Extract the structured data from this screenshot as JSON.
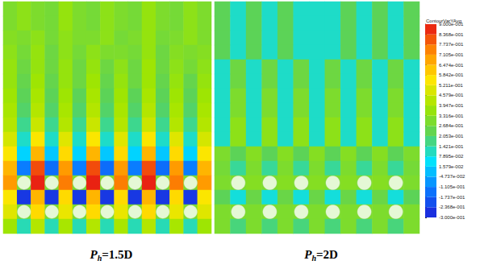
{
  "chart_data": {
    "type": "heatmap",
    "tick_labels": false,
    "colorbar": {
      "title": "ContourVarYAvg",
      "range": [
        -0.3,
        0.9
      ],
      "ticks": [
        {
          "value": 0.9,
          "label": "9.000e-001"
        },
        {
          "value": 0.8368,
          "label": "8.368e-001"
        },
        {
          "value": 0.7737,
          "label": "7.737e-001"
        },
        {
          "value": 0.7105,
          "label": "7.105e-001"
        },
        {
          "value": 0.6474,
          "label": "6.474e-001"
        },
        {
          "value": 0.5842,
          "label": "5.842e-001"
        },
        {
          "value": 0.5211,
          "label": "5.211e-001"
        },
        {
          "value": 0.4579,
          "label": "4.579e-001"
        },
        {
          "value": 0.3947,
          "label": "3.947e-001"
        },
        {
          "value": 0.3316,
          "label": "3.316e-001"
        },
        {
          "value": 0.2684,
          "label": "2.684e-001"
        },
        {
          "value": 0.2053,
          "label": "2.053e-001"
        },
        {
          "value": 0.1421,
          "label": "1.421e-001"
        },
        {
          "value": 0.07895,
          "label": "7.895e-002"
        },
        {
          "value": 0.01579,
          "label": "1.579e-002"
        },
        {
          "value": -0.04737,
          "label": "-4.737e-002"
        },
        {
          "value": -0.1105,
          "label": "-1.105e-001"
        },
        {
          "value": -0.1737,
          "label": "-1.737e-001"
        },
        {
          "value": -0.2368,
          "label": "-2.368e-001"
        },
        {
          "value": -0.3,
          "label": "-3.000e-001"
        }
      ]
    },
    "panels": [
      {
        "label": {
          "symbol": "P",
          "subscript": "h",
          "value": "=1.5D"
        },
        "tubes": [
          [
            1,
            12
          ],
          [
            3,
            12
          ],
          [
            5,
            12
          ],
          [
            7,
            12
          ],
          [
            9,
            12
          ],
          [
            11,
            12
          ],
          [
            13,
            12
          ],
          [
            1,
            14
          ],
          [
            3,
            14
          ],
          [
            5,
            14
          ],
          [
            7,
            14
          ],
          [
            9,
            14
          ],
          [
            11,
            14
          ],
          [
            13,
            14
          ]
        ],
        "cells": [
          [
            0.3,
            0.34,
            0.3,
            0.28,
            0.36,
            0.3,
            0.28,
            0.34,
            0.3,
            0.28,
            0.36,
            0.3,
            0.28,
            0.34,
            0.3
          ],
          [
            0.3,
            0.34,
            0.3,
            0.28,
            0.36,
            0.3,
            0.28,
            0.34,
            0.3,
            0.28,
            0.36,
            0.3,
            0.28,
            0.34,
            0.3
          ],
          [
            0.32,
            0.3,
            0.34,
            0.28,
            0.34,
            0.3,
            0.3,
            0.34,
            0.28,
            0.3,
            0.36,
            0.28,
            0.3,
            0.34,
            0.3
          ],
          [
            0.34,
            0.28,
            0.36,
            0.26,
            0.34,
            0.28,
            0.34,
            0.3,
            0.3,
            0.28,
            0.36,
            0.26,
            0.32,
            0.3,
            0.32
          ],
          [
            0.36,
            0.26,
            0.36,
            0.26,
            0.36,
            0.26,
            0.36,
            0.26,
            0.34,
            0.26,
            0.38,
            0.26,
            0.34,
            0.28,
            0.34
          ],
          [
            0.36,
            0.24,
            0.38,
            0.24,
            0.36,
            0.26,
            0.38,
            0.24,
            0.36,
            0.26,
            0.38,
            0.24,
            0.36,
            0.24,
            0.36
          ],
          [
            0.38,
            0.22,
            0.4,
            0.22,
            0.38,
            0.22,
            0.4,
            0.22,
            0.38,
            0.22,
            0.4,
            0.22,
            0.38,
            0.22,
            0.38
          ],
          [
            0.4,
            0.2,
            0.42,
            0.2,
            0.4,
            0.2,
            0.42,
            0.2,
            0.4,
            0.2,
            0.42,
            0.2,
            0.4,
            0.2,
            0.4
          ],
          [
            0.42,
            0.16,
            0.46,
            0.16,
            0.42,
            0.16,
            0.46,
            0.16,
            0.42,
            0.16,
            0.46,
            0.16,
            0.42,
            0.16,
            0.42
          ],
          [
            0.48,
            0.1,
            0.55,
            0.1,
            0.5,
            0.1,
            0.55,
            0.1,
            0.5,
            0.1,
            0.55,
            0.1,
            0.5,
            0.1,
            0.48
          ],
          [
            0.55,
            0.02,
            0.65,
            0.0,
            0.58,
            0.02,
            0.65,
            0.0,
            0.58,
            0.02,
            0.65,
            0.0,
            0.58,
            0.02,
            0.55
          ],
          [
            0.65,
            -0.12,
            0.82,
            -0.15,
            0.7,
            -0.12,
            0.82,
            -0.15,
            0.7,
            -0.12,
            0.82,
            -0.15,
            0.7,
            -0.12,
            0.65
          ],
          [
            0.7,
            0.3,
            0.88,
            0.3,
            0.75,
            0.3,
            0.88,
            0.3,
            0.75,
            0.3,
            0.88,
            0.3,
            0.75,
            0.3,
            0.7
          ],
          [
            0.55,
            -0.25,
            0.65,
            -0.25,
            0.58,
            -0.25,
            0.65,
            -0.25,
            0.58,
            -0.25,
            0.65,
            -0.25,
            0.58,
            -0.25,
            0.55
          ],
          [
            0.5,
            0.3,
            0.58,
            0.3,
            0.52,
            0.3,
            0.58,
            0.3,
            0.52,
            0.3,
            0.58,
            0.3,
            0.52,
            0.3,
            0.5
          ],
          [
            0.38,
            0.12,
            0.42,
            0.12,
            0.4,
            0.12,
            0.42,
            0.12,
            0.4,
            0.12,
            0.42,
            0.12,
            0.4,
            0.12,
            0.38
          ]
        ]
      },
      {
        "label": {
          "symbol": "P",
          "subscript": "h",
          "value": "=2D"
        },
        "tubes": [
          [
            1,
            12
          ],
          [
            3,
            12
          ],
          [
            5,
            12
          ],
          [
            7,
            12
          ],
          [
            9,
            12
          ],
          [
            11,
            12
          ],
          [
            1,
            14
          ],
          [
            3,
            14
          ],
          [
            5,
            14
          ],
          [
            7,
            14
          ],
          [
            9,
            14
          ],
          [
            11,
            14
          ]
        ],
        "cells": [
          [
            0.22,
            0.1,
            0.22,
            0.1,
            0.22,
            0.1,
            0.1,
            0.1,
            0.22,
            0.1,
            0.22,
            0.1,
            0.22
          ],
          [
            0.22,
            0.1,
            0.22,
            0.1,
            0.22,
            0.1,
            0.1,
            0.1,
            0.22,
            0.1,
            0.22,
            0.1,
            0.22
          ],
          [
            0.22,
            0.1,
            0.22,
            0.1,
            0.22,
            0.1,
            0.1,
            0.1,
            0.22,
            0.1,
            0.22,
            0.1,
            0.22
          ],
          [
            0.22,
            0.1,
            0.22,
            0.1,
            0.22,
            0.1,
            0.1,
            0.1,
            0.22,
            0.1,
            0.22,
            0.1,
            0.22
          ],
          [
            0.1,
            0.26,
            0.1,
            0.26,
            0.1,
            0.26,
            0.1,
            0.26,
            0.1,
            0.26,
            0.1,
            0.26,
            0.1
          ],
          [
            0.1,
            0.26,
            0.1,
            0.26,
            0.1,
            0.26,
            0.1,
            0.26,
            0.1,
            0.26,
            0.1,
            0.26,
            0.1
          ],
          [
            0.1,
            0.3,
            0.1,
            0.3,
            0.1,
            0.3,
            0.1,
            0.3,
            0.1,
            0.3,
            0.1,
            0.3,
            0.1
          ],
          [
            0.1,
            0.3,
            0.1,
            0.3,
            0.1,
            0.3,
            0.1,
            0.3,
            0.1,
            0.3,
            0.1,
            0.3,
            0.1
          ],
          [
            0.1,
            0.34,
            0.1,
            0.34,
            0.1,
            0.34,
            0.1,
            0.34,
            0.1,
            0.34,
            0.1,
            0.34,
            0.1
          ],
          [
            0.1,
            0.34,
            0.1,
            0.34,
            0.1,
            0.34,
            0.1,
            0.34,
            0.1,
            0.34,
            0.1,
            0.34,
            0.1
          ],
          [
            0.3,
            0.22,
            0.32,
            0.22,
            0.32,
            0.22,
            0.32,
            0.22,
            0.32,
            0.22,
            0.32,
            0.22,
            0.3
          ],
          [
            0.28,
            0.15,
            0.3,
            0.15,
            0.3,
            0.15,
            0.3,
            0.15,
            0.3,
            0.15,
            0.3,
            0.15,
            0.28
          ],
          [
            0.3,
            0.3,
            0.32,
            0.3,
            0.32,
            0.3,
            0.32,
            0.3,
            0.32,
            0.3,
            0.32,
            0.3,
            0.3
          ],
          [
            0.22,
            0.08,
            0.25,
            0.08,
            0.25,
            0.08,
            0.25,
            0.08,
            0.25,
            0.08,
            0.25,
            0.08,
            0.22
          ],
          [
            0.3,
            0.3,
            0.3,
            0.3,
            0.3,
            0.3,
            0.3,
            0.3,
            0.3,
            0.3,
            0.3,
            0.3,
            0.3
          ],
          [
            0.3,
            0.18,
            0.3,
            0.18,
            0.3,
            0.18,
            0.3,
            0.18,
            0.3,
            0.18,
            0.3,
            0.18,
            0.3
          ]
        ]
      }
    ]
  }
}
